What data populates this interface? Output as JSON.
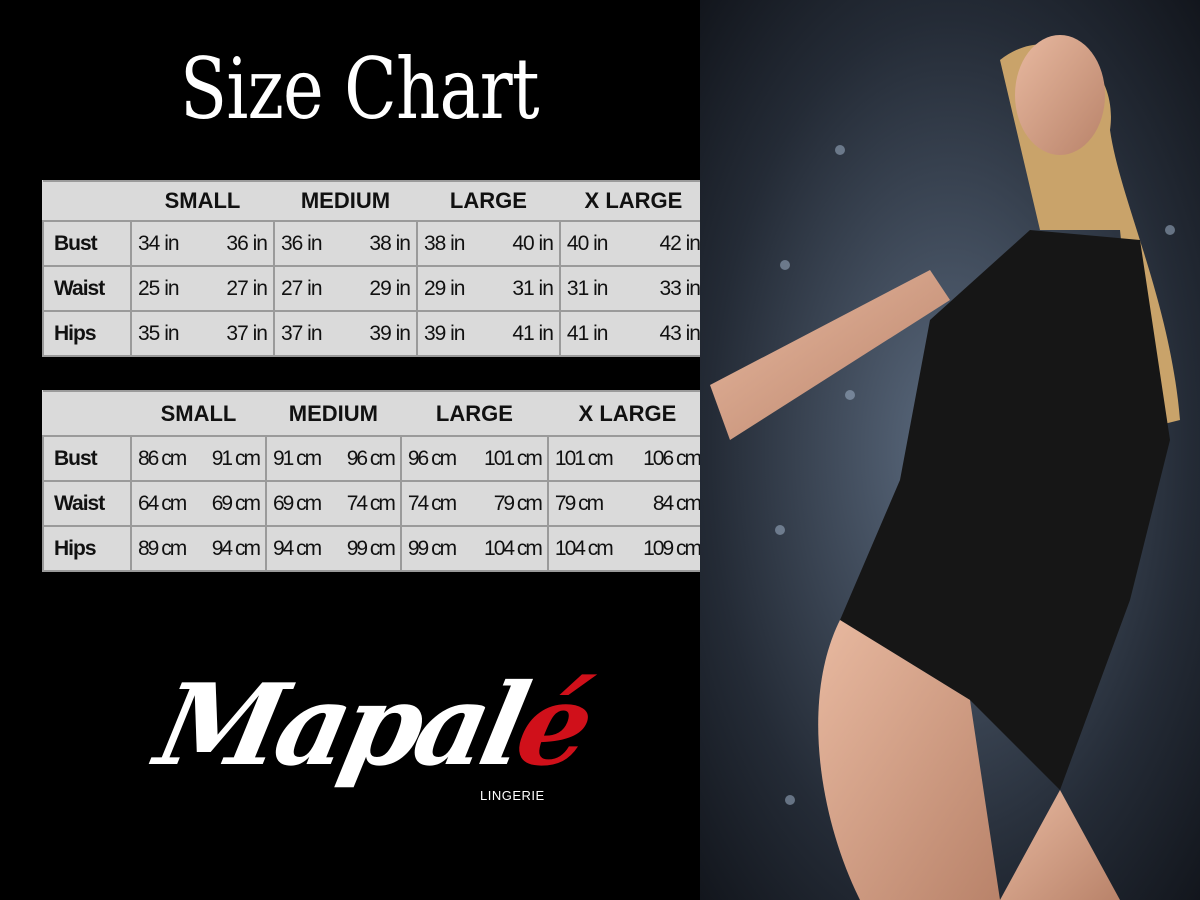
{
  "title": "Size Chart",
  "sizes": [
    "SMALL",
    "MEDIUM",
    "LARGE",
    "X LARGE"
  ],
  "inches_table": {
    "rows": [
      {
        "label": "Bust",
        "values": [
          "34 in",
          "36 in",
          "36 in",
          "38 in",
          "38 in",
          "40 in",
          "40 in",
          "42 in"
        ]
      },
      {
        "label": "Waist",
        "values": [
          "25 in",
          "27 in",
          "27 in",
          "29 in",
          "29 in",
          "31 in",
          "31 in",
          "33 in"
        ]
      },
      {
        "label": "Hips",
        "values": [
          "35 in",
          "37 in",
          "37 in",
          "39 in",
          "39 in",
          "41 in",
          "41 in",
          "43 in"
        ]
      }
    ]
  },
  "cm_table": {
    "rows": [
      {
        "label": "Bust",
        "values": [
          "86 cm",
          "91 cm",
          "91 cm",
          "96 cm",
          "96 cm",
          "101 cm",
          "101 cm",
          "106 cm"
        ]
      },
      {
        "label": "Waist",
        "values": [
          "64 cm",
          "69 cm",
          "69 cm",
          "74 cm",
          "74 cm",
          "79  cm",
          "79 cm",
          "84 cm"
        ]
      },
      {
        "label": "Hips",
        "values": [
          "89 cm",
          "94 cm",
          "94 cm",
          "99 cm",
          "99 cm",
          "104 cm",
          "104 cm",
          "109 cm"
        ]
      }
    ]
  },
  "logo": {
    "brand_main": "Mapal",
    "brand_accent": "é",
    "tagline": "LINGERIE",
    "accent_color": "#d0101a"
  },
  "colors": {
    "background": "#000000",
    "table_bg": "#dadada",
    "table_border": "#9a9a9a"
  }
}
